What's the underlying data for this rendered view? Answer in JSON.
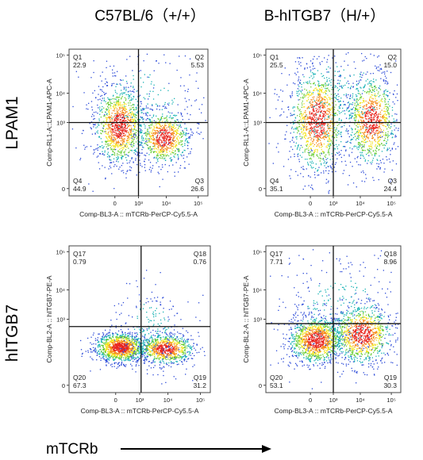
{
  "columns": [
    "C57BL/6（+/+）",
    "B-hITGB7（H/+）"
  ],
  "rows": [
    "LPAM1",
    "hITGB7"
  ],
  "footer": {
    "label": "mTCRb"
  },
  "chart_data": [
    {
      "type": "scatter",
      "ylabel": "Comp-RL1-A::LPAM1-APC-A",
      "xlabel": "Comp-BL3-A :: mTCRb-PerCP-Cy5.5-A",
      "xticks": [
        "0",
        "10³",
        "10⁴",
        "10⁵"
      ],
      "yticks": [
        "0",
        "10³",
        "10⁴",
        "10⁵"
      ],
      "quadrants": [
        {
          "name": "Q1",
          "value": "22.9"
        },
        {
          "name": "Q2",
          "value": "5.53"
        },
        {
          "name": "Q3",
          "value": "26.6"
        },
        {
          "name": "Q4",
          "value": "44.9"
        }
      ]
    },
    {
      "type": "scatter",
      "ylabel": "Comp-RL1-A::LPAM1-APC-A",
      "xlabel": "Comp-BL3-A :: mTCRb-PerCP-Cy5.5-A",
      "xticks": [
        "0",
        "10³",
        "10⁴",
        "10⁵"
      ],
      "yticks": [
        "0",
        "10³",
        "10⁴",
        "10⁵"
      ],
      "quadrants": [
        {
          "name": "Q1",
          "value": "25.5"
        },
        {
          "name": "Q2",
          "value": "15.0"
        },
        {
          "name": "Q3",
          "value": "24.4"
        },
        {
          "name": "Q4",
          "value": "35.1"
        }
      ]
    },
    {
      "type": "scatter",
      "ylabel": "Comp-BL2-A :: hITGB7-PE-A",
      "xlabel": "Comp-BL3-A :: mTCRb-PerCP-Cy5.5-A",
      "xticks": [
        "0",
        "10³",
        "10⁴",
        "10⁵"
      ],
      "yticks": [
        "0",
        "10³",
        "10⁴",
        "10⁵"
      ],
      "quadrants": [
        {
          "name": "Q17",
          "value": "0.79"
        },
        {
          "name": "Q18",
          "value": "0.76"
        },
        {
          "name": "Q19",
          "value": "31.2"
        },
        {
          "name": "Q20",
          "value": "67.3"
        }
      ]
    },
    {
      "type": "scatter",
      "ylabel": "Comp-BL2-A :: hITGB7-PE-A",
      "xlabel": "Comp-BL3-A :: mTCRb-PerCP-Cy5.5-A",
      "xticks": [
        "0",
        "10³",
        "10⁴",
        "10⁵"
      ],
      "yticks": [
        "0",
        "10³",
        "10⁴",
        "10⁵"
      ],
      "quadrants": [
        {
          "name": "Q17",
          "value": "7.71"
        },
        {
          "name": "Q18",
          "value": "8.96"
        },
        {
          "name": "Q19",
          "value": "30.3"
        },
        {
          "name": "Q20",
          "value": "53.1"
        }
      ]
    }
  ]
}
